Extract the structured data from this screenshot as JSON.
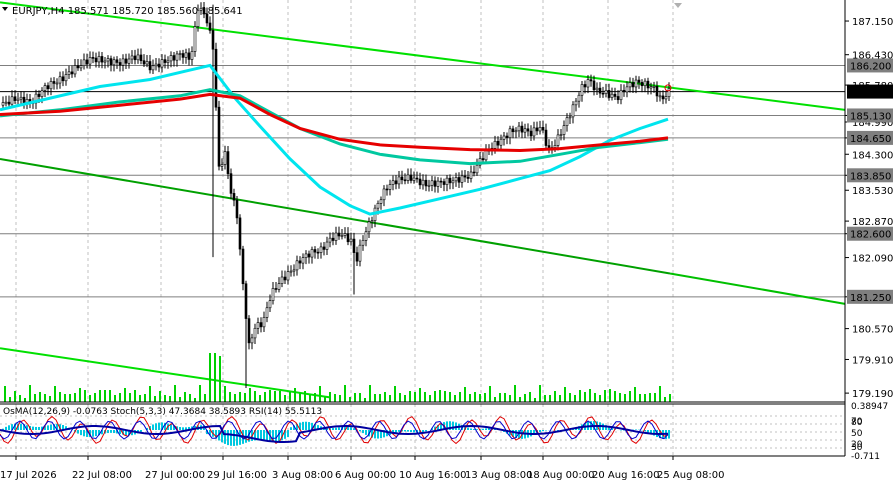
{
  "chart_data": {
    "type": "line",
    "title": "EURJPY,H4",
    "header_values": [
      "185.571",
      "185.720",
      "185.560",
      "185.641"
    ],
    "indicator_labels": [
      "OsMA(12,26,9) -0.0763",
      "Stoch(5,3,3) 47.3684 38.5893",
      "RSI(14) 55.5113"
    ],
    "x_tick_labels": [
      "17 Jul 2026",
      "22 Jul 08:00",
      "27 Jul 00:00",
      "29 Jul 16:00",
      "3 Aug 08:00",
      "6 Aug 00:00",
      "10 Aug 16:00",
      "13 Aug 08:00",
      "18 Aug 00:00",
      "20 Aug 16:00",
      "25 Aug 08:00"
    ],
    "y_tick_labels": [
      "187.150",
      "186.430",
      "185.780",
      "185.130",
      "184.990",
      "184.650",
      "184.300",
      "183.850",
      "183.530",
      "182.870",
      "182.600",
      "182.090",
      "181.250",
      "180.570",
      "179.910",
      "179.190"
    ],
    "price_levels": [
      {
        "label": "186.200",
        "value": 186.2,
        "color": "#7f7f7f"
      },
      {
        "label": "185.641",
        "value": 185.641,
        "color": "#000000"
      },
      {
        "label": "185.130",
        "value": 185.13,
        "color": "#7f7f7f"
      },
      {
        "label": "184.650",
        "value": 184.65,
        "color": "#7f7f7f"
      },
      {
        "label": "183.850",
        "value": 183.85,
        "color": "#7f7f7f"
      },
      {
        "label": "182.600",
        "value": 182.6,
        "color": "#7f7f7f"
      },
      {
        "label": "181.250",
        "value": 181.25,
        "color": "#7f7f7f"
      }
    ],
    "y_range": [
      179.0,
      187.6
    ],
    "series": [
      {
        "color": "#00e5ee",
        "values": [
          [
            0,
            185.25
          ],
          [
            40,
            185.45
          ],
          [
            100,
            185.75
          ],
          [
            150,
            185.9
          ],
          [
            190,
            186.1
          ],
          [
            210,
            186.2
          ],
          [
            235,
            185.5
          ],
          [
            260,
            184.9
          ],
          [
            290,
            184.2
          ],
          [
            320,
            183.6
          ],
          [
            350,
            183.2
          ],
          [
            370,
            183.02
          ],
          [
            400,
            183.15
          ],
          [
            440,
            183.35
          ],
          [
            480,
            183.55
          ],
          [
            520,
            183.78
          ],
          [
            550,
            183.95
          ],
          [
            580,
            184.25
          ],
          [
            610,
            184.6
          ],
          [
            640,
            184.85
          ],
          [
            668,
            185.05
          ]
        ]
      },
      {
        "color": "#00c8a0",
        "values": [
          [
            0,
            185.12
          ],
          [
            60,
            185.25
          ],
          [
            120,
            185.42
          ],
          [
            180,
            185.55
          ],
          [
            210,
            185.68
          ],
          [
            240,
            185.55
          ],
          [
            270,
            185.2
          ],
          [
            300,
            184.85
          ],
          [
            340,
            184.52
          ],
          [
            380,
            184.3
          ],
          [
            420,
            184.18
          ],
          [
            470,
            184.1
          ],
          [
            520,
            184.15
          ],
          [
            560,
            184.3
          ],
          [
            600,
            184.45
          ],
          [
            640,
            184.55
          ],
          [
            668,
            184.62
          ]
        ]
      },
      {
        "color": "#e60000",
        "values": [
          [
            0,
            185.15
          ],
          [
            60,
            185.22
          ],
          [
            120,
            185.35
          ],
          [
            180,
            185.48
          ],
          [
            210,
            185.58
          ],
          [
            240,
            185.5
          ],
          [
            270,
            185.15
          ],
          [
            300,
            184.85
          ],
          [
            340,
            184.62
          ],
          [
            380,
            184.5
          ],
          [
            420,
            184.45
          ],
          [
            470,
            184.4
          ],
          [
            520,
            184.38
          ],
          [
            560,
            184.42
          ],
          [
            600,
            184.5
          ],
          [
            640,
            184.58
          ],
          [
            668,
            184.65
          ]
        ]
      }
    ],
    "close_path": [
      [
        0,
        185.35
      ],
      [
        15,
        185.5
      ],
      [
        30,
        185.4
      ],
      [
        45,
        185.75
      ],
      [
        60,
        185.9
      ],
      [
        75,
        186.15
      ],
      [
        90,
        186.35
      ],
      [
        105,
        186.3
      ],
      [
        120,
        186.25
      ],
      [
        135,
        186.4
      ],
      [
        150,
        186.15
      ],
      [
        165,
        186.3
      ],
      [
        180,
        186.45
      ],
      [
        190,
        186.35
      ],
      [
        197,
        187.45
      ],
      [
        205,
        187.25
      ],
      [
        212,
        186.6
      ],
      [
        218,
        184.0
      ],
      [
        224,
        184.3
      ],
      [
        230,
        183.5
      ],
      [
        236,
        183.0
      ],
      [
        242,
        181.5
      ],
      [
        248,
        180.2
      ],
      [
        254,
        180.6
      ],
      [
        262,
        180.7
      ],
      [
        270,
        181.3
      ],
      [
        280,
        181.6
      ],
      [
        290,
        181.8
      ],
      [
        300,
        182.05
      ],
      [
        310,
        182.2
      ],
      [
        320,
        182.25
      ],
      [
        330,
        182.5
      ],
      [
        340,
        182.6
      ],
      [
        350,
        182.45
      ],
      [
        355,
        182.0
      ],
      [
        362,
        182.5
      ],
      [
        370,
        182.9
      ],
      [
        378,
        183.3
      ],
      [
        386,
        183.6
      ],
      [
        396,
        183.75
      ],
      [
        410,
        183.8
      ],
      [
        425,
        183.65
      ],
      [
        440,
        183.7
      ],
      [
        455,
        183.75
      ],
      [
        470,
        183.85
      ],
      [
        480,
        184.2
      ],
      [
        490,
        184.45
      ],
      [
        500,
        184.6
      ],
      [
        510,
        184.8
      ],
      [
        520,
        184.85
      ],
      [
        530,
        184.75
      ],
      [
        540,
        184.9
      ],
      [
        548,
        184.35
      ],
      [
        556,
        184.6
      ],
      [
        564,
        184.95
      ],
      [
        572,
        185.3
      ],
      [
        580,
        185.7
      ],
      [
        588,
        185.9
      ],
      [
        596,
        185.65
      ],
      [
        606,
        185.6
      ],
      [
        616,
        185.5
      ],
      [
        626,
        185.75
      ],
      [
        636,
        185.85
      ],
      [
        646,
        185.78
      ],
      [
        654,
        185.7
      ],
      [
        660,
        185.45
      ],
      [
        668,
        185.64
      ]
    ],
    "trend_lines": [
      {
        "color": "#00e000",
        "x_start": 0,
        "y_start": 187.55,
        "x_end": 845,
        "y_end": 185.25
      },
      {
        "color": "#00e000",
        "x_start": 0,
        "y_start": 180.15,
        "x_end": 330,
        "y_end": 179.1
      },
      {
        "color": "#00a000",
        "x_start": 0,
        "y_start": 184.2,
        "x_end": 670,
        "y_end": 181.75
      },
      {
        "color": "#00c000",
        "x_start": 670,
        "y_start": 181.75,
        "x_end": 845,
        "y_end": 181.1
      }
    ]
  }
}
